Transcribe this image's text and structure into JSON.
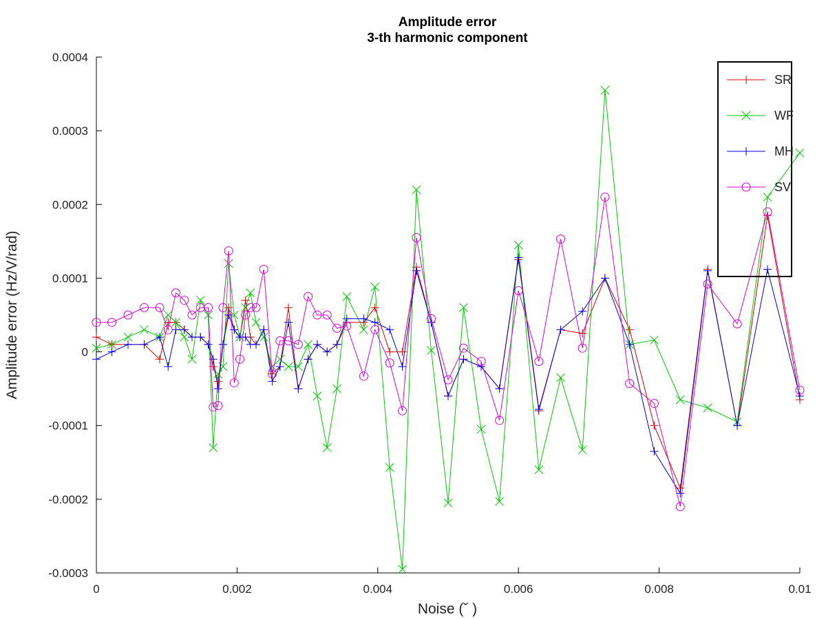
{
  "chart_data": {
    "type": "line",
    "title": "Amplitude error",
    "subtitle": "3-th harmonic component",
    "xlabel": "Noise (˘ )",
    "ylabel": "Amplitude error (Hz/V/rad)",
    "xlim": [
      0,
      0.01
    ],
    "ylim": [
      -0.0003,
      0.0004
    ],
    "xticks": [
      0,
      0.002,
      0.004,
      0.006,
      0.008,
      0.01
    ],
    "xtick_labels": [
      "0",
      "0.002",
      "0.004",
      "0.006",
      "0.008",
      "0.01"
    ],
    "yticks": [
      -0.0003,
      -0.0002,
      -0.0001,
      0,
      0.0001,
      0.0002,
      0.0003,
      0.0004
    ],
    "ytick_labels": [
      "-0.0003",
      "-0.0002",
      "-0.0001",
      "0",
      "0.0001",
      "0.0002",
      "0.0003",
      "0.0004"
    ],
    "grid": false,
    "legend_position": "top-right",
    "x": [
      0,
      0.00022,
      0.00045,
      0.00068,
      0.0009,
      0.00102,
      0.00113,
      0.00125,
      0.00136,
      0.00148,
      0.00159,
      0.00166,
      0.00173,
      0.0018,
      0.00188,
      0.00196,
      0.00204,
      0.00212,
      0.00219,
      0.00227,
      0.00238,
      0.0025,
      0.00261,
      0.00273,
      0.00287,
      0.00301,
      0.00314,
      0.00328,
      0.00342,
      0.00356,
      0.0038,
      0.00396,
      0.00417,
      0.00435,
      0.00455,
      0.00476,
      0.005,
      0.00522,
      0.00547,
      0.00573,
      0.006,
      0.00629,
      0.0066,
      0.00691,
      0.00723,
      0.00758,
      0.00793,
      0.0083,
      0.00869,
      0.00911,
      0.00954,
      0.01
    ],
    "series": [
      {
        "name": "SR",
        "color": "#dd0000",
        "marker": "plus",
        "values": [
          2e-05,
          1e-05,
          1e-05,
          1e-05,
          -1e-05,
          4e-05,
          4e-05,
          3e-05,
          2e-05,
          2e-05,
          1e-05,
          -2e-05,
          -4e-05,
          1e-05,
          6e-05,
          3e-05,
          2e-05,
          7e-05,
          2e-05,
          1e-05,
          3e-05,
          -3e-05,
          -2e-05,
          6e-05,
          -5e-05,
          -1e-05,
          1e-05,
          0,
          1e-05,
          4e-05,
          4e-05,
          6e-05,
          0,
          0,
          0.000115,
          4e-05,
          -6e-05,
          -1e-05,
          -2e-05,
          -5e-05,
          0.000125,
          -8e-05,
          3e-05,
          2.5e-05,
          0.0001,
          3e-05,
          -0.0001,
          -0.000185,
          0.000112,
          -0.0001,
          0.000185,
          -6.5e-05
        ]
      },
      {
        "name": "WF",
        "color": "#00cc00",
        "marker": "cross",
        "values": [
          5e-06,
          1e-05,
          2e-05,
          3e-05,
          2e-05,
          5e-05,
          4e-05,
          2e-05,
          -1e-05,
          7e-05,
          5e-05,
          -0.00013,
          -3e-05,
          -2e-05,
          0.00012,
          5e-05,
          2e-05,
          6e-05,
          8e-05,
          4e-05,
          2e-05,
          -2e-05,
          -1e-05,
          -2e-05,
          -2e-05,
          1e-05,
          -6e-05,
          -0.00013,
          -5e-05,
          7.5e-05,
          3e-05,
          8.8e-05,
          -0.000157,
          -0.000295,
          0.00022,
          2e-06,
          -0.000205,
          6e-05,
          -0.000105,
          -0.000203,
          0.000145,
          -0.00016,
          -3.5e-05,
          -0.000133,
          0.000355,
          1e-05,
          1.6e-05,
          -6.5e-05,
          -7.6e-05,
          -9.5e-05,
          0.00021,
          0.00027
        ]
      },
      {
        "name": "MH",
        "color": "#0000dd",
        "marker": "plus",
        "values": [
          -1e-05,
          0,
          1e-05,
          1e-05,
          2e-05,
          -2e-05,
          3e-05,
          3e-05,
          2e-05,
          2e-05,
          1e-05,
          -1e-05,
          -5e-05,
          1e-05,
          5e-05,
          3e-05,
          2e-05,
          2e-05,
          1e-05,
          1e-05,
          3e-05,
          -4e-05,
          -2e-05,
          4e-05,
          -5e-05,
          -1e-05,
          1e-05,
          0,
          1e-05,
          4.5e-05,
          4.5e-05,
          4e-05,
          3e-05,
          -2e-05,
          0.00011,
          4e-05,
          -6e-05,
          -1e-05,
          -2e-05,
          -5e-05,
          0.000128,
          -7.8e-05,
          3e-05,
          5.5e-05,
          0.0001,
          1e-05,
          -0.000135,
          -0.000192,
          0.00011,
          -0.0001,
          0.000112,
          -6e-05
        ]
      },
      {
        "name": "SV",
        "color": "#dd00dd",
        "marker": "circle",
        "values": [
          4e-05,
          4e-05,
          5e-05,
          6e-05,
          6e-05,
          3e-05,
          8e-05,
          7e-05,
          5e-05,
          6e-05,
          6e-05,
          -7.5e-05,
          -7.3e-05,
          6e-05,
          0.000137,
          -4.2e-05,
          -1e-05,
          5e-05,
          6e-05,
          6e-05,
          0.000112,
          -3e-05,
          1.5e-05,
          1.5e-05,
          1e-05,
          7.5e-05,
          5e-05,
          5e-05,
          3.2e-05,
          3.5e-05,
          -3.3e-05,
          3e-05,
          -1.5e-05,
          -8e-05,
          0.000155,
          4.5e-05,
          -3.8e-05,
          5e-06,
          -1.3e-05,
          -9.3e-05,
          8.3e-05,
          -1.3e-05,
          0.000153,
          5e-06,
          0.00021,
          -4.3e-05,
          -7e-05,
          -0.00021,
          9.2e-05,
          3.8e-05,
          0.00019,
          -5.2e-05
        ]
      }
    ]
  }
}
